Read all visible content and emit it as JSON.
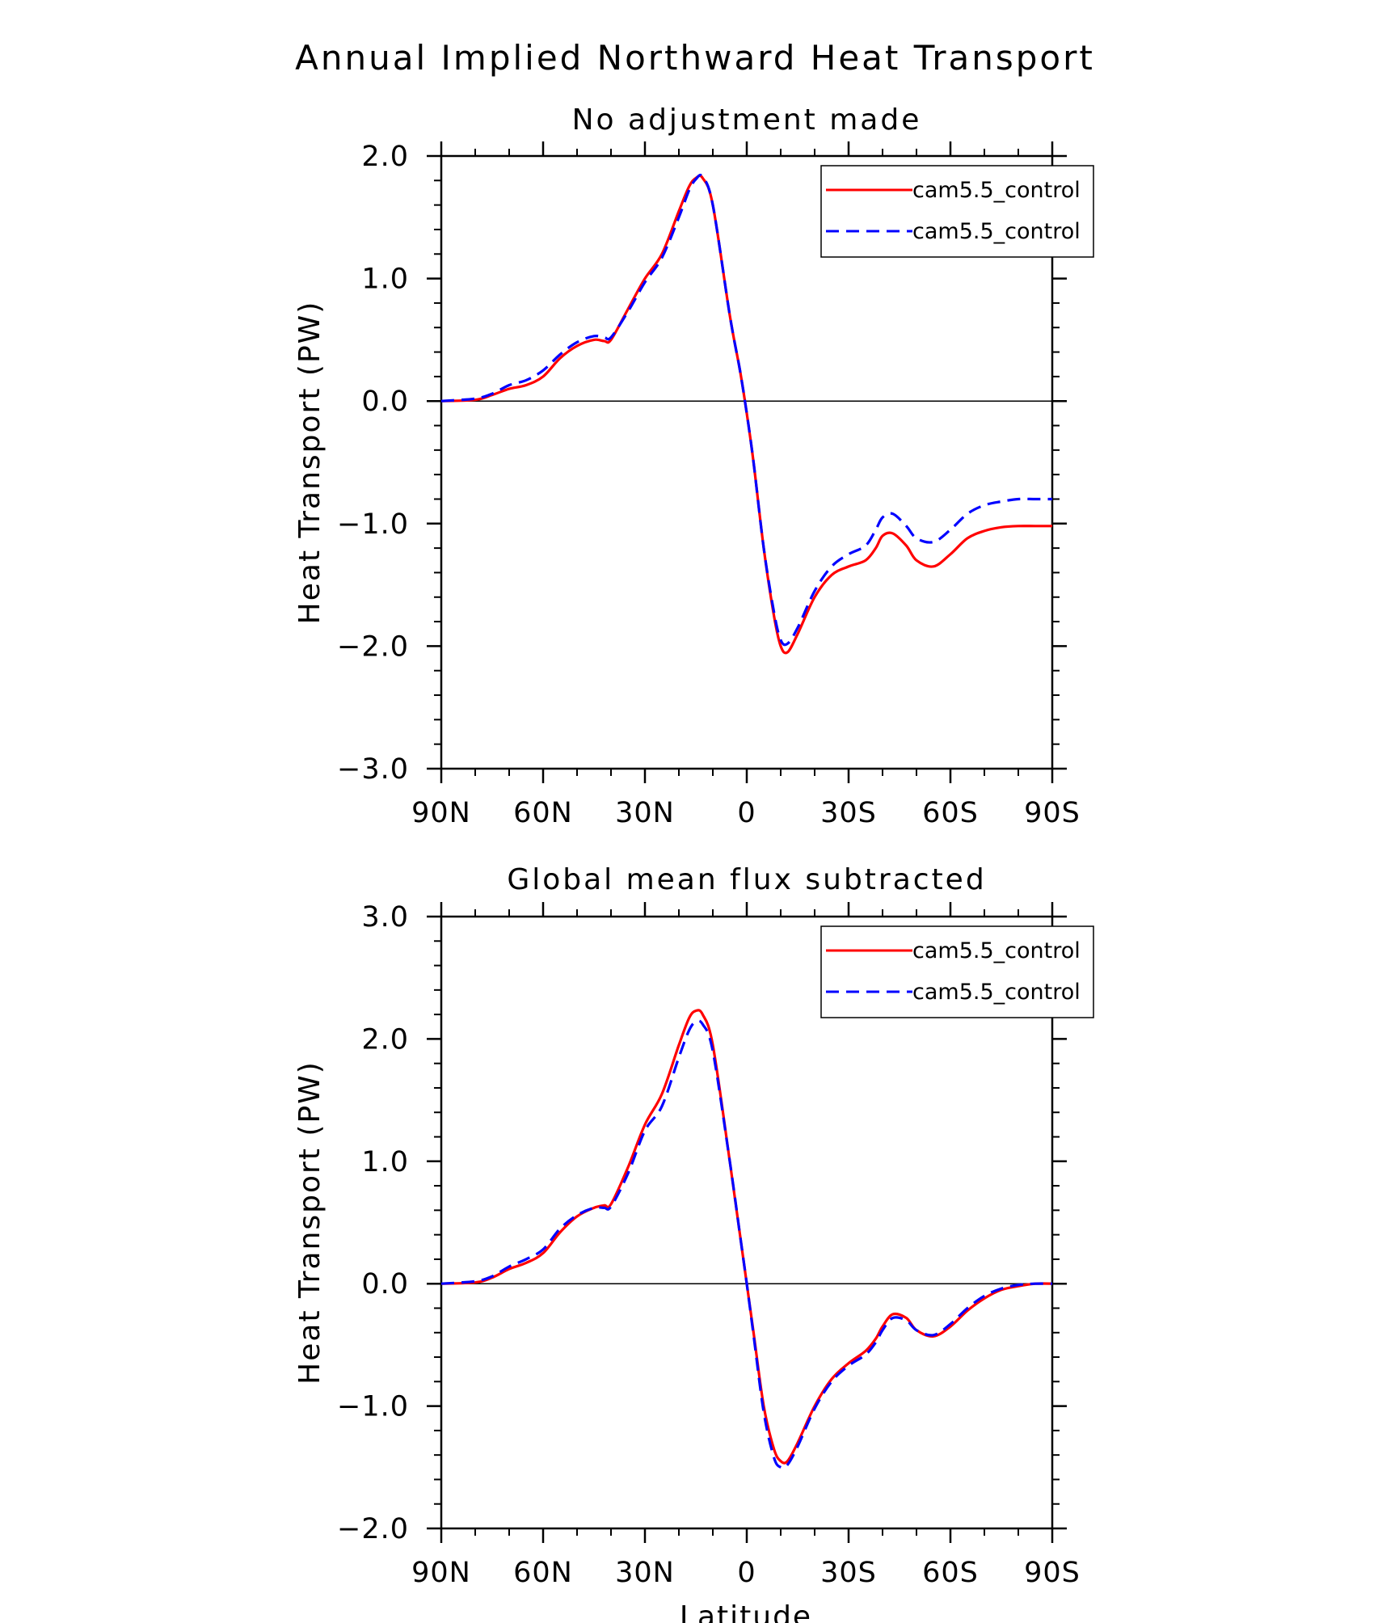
{
  "figure": {
    "title": "Annual Implied Northward Heat Transport",
    "xlabel": "Latitude"
  },
  "chart_data": [
    {
      "type": "line",
      "title": "No adjustment made",
      "xlabel": "",
      "ylabel": "Heat Transport (PW)",
      "xlim": [
        90,
        -90
      ],
      "ylim": [
        -3.0,
        2.0
      ],
      "xticks": [
        90,
        60,
        30,
        0,
        -30,
        -60,
        -90
      ],
      "xtick_labels": [
        "90N",
        "60N",
        "30N",
        "0",
        "30S",
        "60S",
        "90S"
      ],
      "yticks": [
        -3.0,
        -2.0,
        -1.0,
        0.0,
        1.0,
        2.0
      ],
      "ytick_labels": [
        "−3.0",
        "−2.0",
        "−1.0",
        "0.0",
        "1.0",
        "2.0"
      ],
      "legend": "top-right",
      "x": [
        90,
        80,
        75,
        70,
        65,
        60,
        55,
        50,
        45,
        42,
        40,
        35,
        30,
        25,
        20,
        17,
        15,
        13,
        10,
        5,
        2,
        0,
        -2,
        -5,
        -8,
        -10,
        -12,
        -15,
        -20,
        -25,
        -30,
        -35,
        -38,
        -40,
        -43,
        -47,
        -50,
        -55,
        -60,
        -65,
        -70,
        -75,
        -80,
        -85,
        -90
      ],
      "series": [
        {
          "name": "cam5.5_control",
          "color": "#ff0000",
          "dash": "solid",
          "values": [
            0.0,
            0.01,
            0.05,
            0.1,
            0.13,
            0.2,
            0.35,
            0.45,
            0.5,
            0.49,
            0.5,
            0.75,
            1.0,
            1.2,
            1.55,
            1.75,
            1.82,
            1.82,
            1.6,
            0.7,
            0.25,
            -0.1,
            -0.5,
            -1.2,
            -1.75,
            -2.0,
            -2.05,
            -1.9,
            -1.6,
            -1.42,
            -1.35,
            -1.3,
            -1.2,
            -1.1,
            -1.08,
            -1.18,
            -1.3,
            -1.35,
            -1.25,
            -1.12,
            -1.06,
            -1.03,
            -1.02,
            -1.02,
            -1.02
          ]
        },
        {
          "name": "cam5.5_control",
          "color": "#0000ff",
          "dash": "dashed",
          "values": [
            0.0,
            0.02,
            0.06,
            0.13,
            0.17,
            0.25,
            0.38,
            0.48,
            0.53,
            0.52,
            0.52,
            0.73,
            0.97,
            1.17,
            1.5,
            1.72,
            1.81,
            1.83,
            1.6,
            0.7,
            0.25,
            -0.1,
            -0.5,
            -1.2,
            -1.72,
            -1.95,
            -1.98,
            -1.85,
            -1.55,
            -1.35,
            -1.25,
            -1.18,
            -1.05,
            -0.95,
            -0.92,
            -1.02,
            -1.12,
            -1.15,
            -1.05,
            -0.92,
            -0.85,
            -0.82,
            -0.8,
            -0.8,
            -0.8
          ]
        }
      ]
    },
    {
      "type": "line",
      "title": "Global mean flux subtracted",
      "xlabel": "Latitude",
      "ylabel": "Heat Transport (PW)",
      "xlim": [
        90,
        -90
      ],
      "ylim": [
        -2.0,
        3.0
      ],
      "xticks": [
        90,
        60,
        30,
        0,
        -30,
        -60,
        -90
      ],
      "xtick_labels": [
        "90N",
        "60N",
        "30N",
        "0",
        "30S",
        "60S",
        "90S"
      ],
      "yticks": [
        -2.0,
        -1.0,
        0.0,
        1.0,
        2.0,
        3.0
      ],
      "ytick_labels": [
        "−2.0",
        "−1.0",
        "0.0",
        "1.0",
        "2.0",
        "3.0"
      ],
      "legend": "top-right",
      "x": [
        90,
        80,
        75,
        70,
        65,
        60,
        55,
        50,
        45,
        42,
        40,
        35,
        30,
        25,
        20,
        17,
        15,
        13,
        10,
        5,
        2,
        0,
        -2,
        -5,
        -8,
        -10,
        -12,
        -15,
        -20,
        -25,
        -30,
        -35,
        -38,
        -40,
        -43,
        -47,
        -50,
        -55,
        -60,
        -65,
        -70,
        -75,
        -80,
        -85,
        -90
      ],
      "series": [
        {
          "name": "cam5.5_control",
          "color": "#ff0000",
          "dash": "solid",
          "values": [
            0.0,
            0.01,
            0.05,
            0.12,
            0.17,
            0.25,
            0.42,
            0.55,
            0.62,
            0.64,
            0.65,
            0.95,
            1.3,
            1.55,
            1.95,
            2.17,
            2.23,
            2.2,
            1.95,
            1.0,
            0.4,
            0.0,
            -0.4,
            -1.0,
            -1.35,
            -1.45,
            -1.45,
            -1.3,
            -1.0,
            -0.78,
            -0.65,
            -0.55,
            -0.45,
            -0.35,
            -0.25,
            -0.28,
            -0.38,
            -0.43,
            -0.35,
            -0.22,
            -0.12,
            -0.05,
            -0.02,
            0.0,
            0.0
          ]
        },
        {
          "name": "cam5.5_control",
          "color": "#0000ff",
          "dash": "dashed",
          "values": [
            0.0,
            0.02,
            0.06,
            0.14,
            0.2,
            0.28,
            0.45,
            0.56,
            0.62,
            0.62,
            0.63,
            0.9,
            1.25,
            1.45,
            1.85,
            2.07,
            2.14,
            2.12,
            1.9,
            1.0,
            0.4,
            0.0,
            -0.42,
            -1.05,
            -1.42,
            -1.5,
            -1.48,
            -1.33,
            -1.02,
            -0.8,
            -0.67,
            -0.58,
            -0.48,
            -0.38,
            -0.28,
            -0.3,
            -0.38,
            -0.42,
            -0.33,
            -0.2,
            -0.1,
            -0.04,
            -0.01,
            0.0,
            0.0
          ]
        }
      ]
    }
  ]
}
